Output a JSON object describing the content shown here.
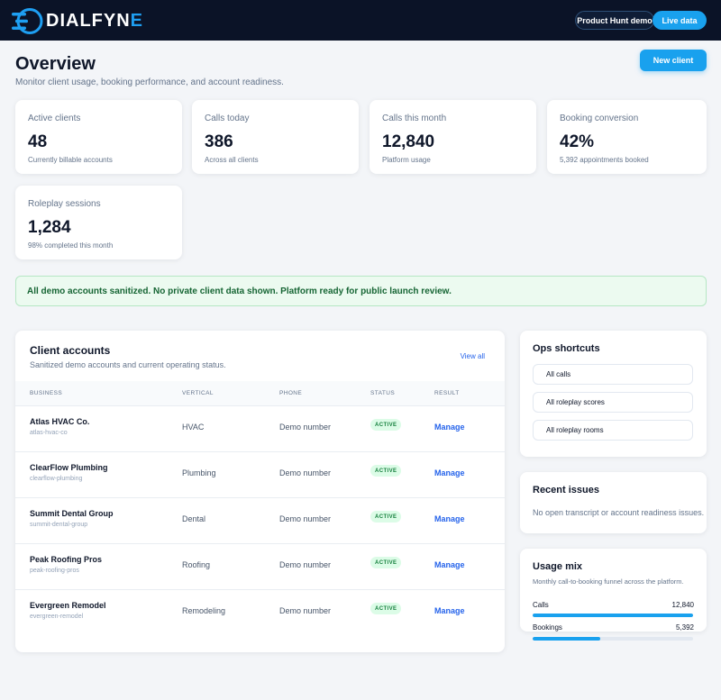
{
  "brand": {
    "name_main": "DIALFYN",
    "name_accent": "E"
  },
  "header": {
    "demo_pill": "Product Hunt demo",
    "live_pill": "Live data"
  },
  "page": {
    "title": "Overview",
    "subtitle": "Monitor client usage, booking performance, and account readiness.",
    "new_client_label": "New client"
  },
  "stats": [
    {
      "label": "Active clients",
      "value": "48",
      "sub": "Currently billable accounts"
    },
    {
      "label": "Calls today",
      "value": "386",
      "sub": "Across all clients"
    },
    {
      "label": "Calls this month",
      "value": "12,840",
      "sub": "Platform usage"
    },
    {
      "label": "Booking conversion",
      "value": "42%",
      "sub": "5,392 appointments booked"
    },
    {
      "label": "Roleplay sessions",
      "value": "1,284",
      "sub": "98% completed this month"
    }
  ],
  "banner": {
    "text": "All demo accounts sanitized. No private client data shown. Platform ready for public launch review."
  },
  "accounts": {
    "title": "Client accounts",
    "subtitle": "Sanitized demo accounts and current operating status.",
    "view_all": "View all",
    "columns": [
      "BUSINESS",
      "VERTICAL",
      "PHONE",
      "STATUS",
      "RESULT"
    ],
    "rows": [
      {
        "name": "Atlas HVAC Co.",
        "slug": "atlas-hvac-co",
        "vertical": "HVAC",
        "phone": "Demo number",
        "status": "ACTIVE",
        "action": "Manage"
      },
      {
        "name": "ClearFlow Plumbing",
        "slug": "clearflow-plumbing",
        "vertical": "Plumbing",
        "phone": "Demo number",
        "status": "ACTIVE",
        "action": "Manage"
      },
      {
        "name": "Summit Dental Group",
        "slug": "summit-dental-group",
        "vertical": "Dental",
        "phone": "Demo number",
        "status": "ACTIVE",
        "action": "Manage"
      },
      {
        "name": "Peak Roofing Pros",
        "slug": "peak-roofing-pros",
        "vertical": "Roofing",
        "phone": "Demo number",
        "status": "ACTIVE",
        "action": "Manage"
      },
      {
        "name": "Evergreen Remodel",
        "slug": "evergreen-remodel",
        "vertical": "Remodeling",
        "phone": "Demo number",
        "status": "ACTIVE",
        "action": "Manage"
      }
    ]
  },
  "ops": {
    "title": "Ops shortcuts",
    "links": [
      "All calls",
      "All roleplay scores",
      "All roleplay rooms"
    ]
  },
  "issues": {
    "title": "Recent issues",
    "text": "No open transcript or account readiness issues."
  },
  "usage": {
    "title": "Usage mix",
    "subtitle": "Monthly call-to-booking funnel across the platform.",
    "items": [
      {
        "label": "Calls",
        "value": "12,840",
        "fraction": 1.0
      },
      {
        "label": "Bookings",
        "value": "5,392",
        "fraction": 0.42
      }
    ]
  },
  "colors": {
    "accent": "#19a1ee",
    "nav_bg": "#0b1327",
    "success": "#15803d"
  }
}
